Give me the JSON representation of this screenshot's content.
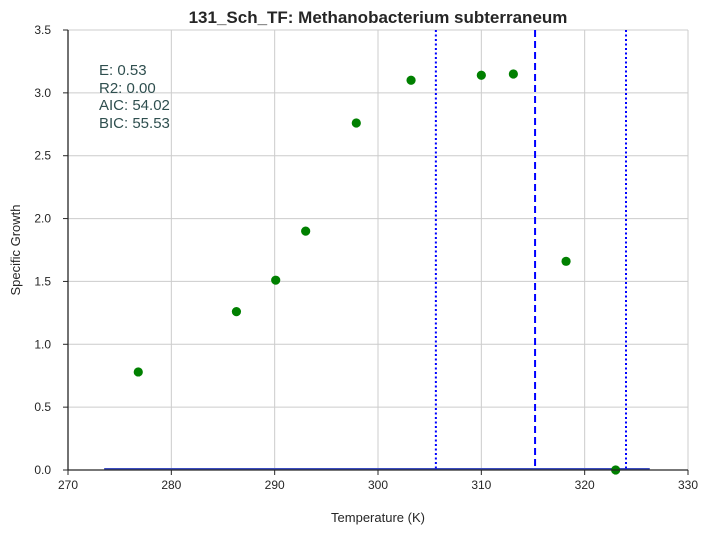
{
  "chart_data": {
    "type": "scatter",
    "title": "131_Sch_TF: Methanobacterium subterraneum",
    "xlabel": "Temperature (K)",
    "ylabel": "Specific Growth",
    "xlim": [
      270,
      330
    ],
    "ylim": [
      0.0,
      3.5
    ],
    "xticks": [
      "270",
      "280",
      "290",
      "300",
      "310",
      "320",
      "330"
    ],
    "yticks": [
      "0.0",
      "0.5",
      "1.0",
      "1.5",
      "2.0",
      "2.5",
      "3.0",
      "3.5"
    ],
    "grid": true,
    "points": {
      "color": "#008000",
      "x": [
        276.8,
        286.3,
        290.1,
        293.0,
        297.9,
        303.2,
        310.0,
        313.1,
        318.2,
        323.0
      ],
      "y": [
        0.78,
        1.26,
        1.51,
        1.9,
        2.76,
        3.1,
        3.14,
        3.15,
        1.66,
        0.0
      ]
    },
    "fit_line": {
      "color": "#3b4cc0",
      "x": [
        273.5,
        326.3
      ],
      "y": [
        0.0,
        0.0
      ]
    },
    "vlines": [
      {
        "x": 305.6,
        "style": "dotted",
        "color": "#0000ff"
      },
      {
        "x": 315.2,
        "style": "dashed",
        "color": "#0000ff"
      },
      {
        "x": 324.0,
        "style": "dotted",
        "color": "#0000ff"
      }
    ],
    "annotations": [
      "E:  0.53",
      "R2:  0.00",
      "AIC: 54.02",
      "BIC: 55.53"
    ]
  }
}
